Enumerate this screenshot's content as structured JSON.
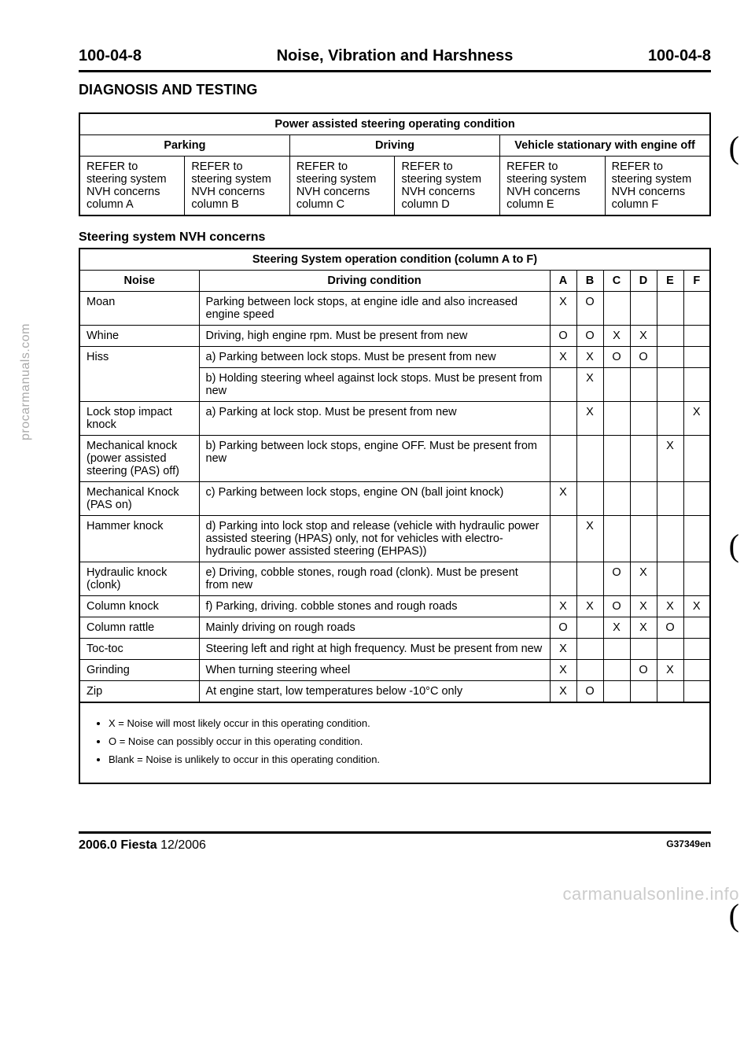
{
  "header": {
    "id_left": "100-04-8",
    "center": "Noise, Vibration and Harshness",
    "id_right": "100-04-8"
  },
  "section_title": "DIAGNOSIS AND TESTING",
  "sidetext": "procarmanuals.com",
  "table1": {
    "caption": "Power assisted steering operating condition",
    "col_headers": [
      "Parking",
      "Driving",
      "Vehicle stationary with engine off"
    ],
    "cells": [
      "REFER to steering system NVH concerns column A",
      "REFER to steering system NVH concerns column B",
      "REFER to steering system NVH concerns column C",
      "REFER to steering system NVH concerns column D",
      "REFER to steering system NVH concerns column E",
      "REFER to steering system NVH concerns column F"
    ]
  },
  "subheading": "Steering system NVH concerns",
  "table2": {
    "caption": "Steering System operation condition (column A to F)",
    "col1": "Noise",
    "col2": "Driving condition",
    "cols": [
      "A",
      "B",
      "C",
      "D",
      "E",
      "F"
    ],
    "rows": [
      {
        "noise": "Moan",
        "cond": "Parking between lock stops, at engine idle and also increased engine speed",
        "m": [
          "X",
          "O",
          "",
          "",
          "",
          ""
        ]
      },
      {
        "noise": "Whine",
        "cond": "Driving, high engine rpm. Must be present from new",
        "m": [
          "O",
          "O",
          "X",
          "X",
          "",
          ""
        ]
      },
      {
        "noise": "Hiss",
        "cond": "a) Parking between lock stops. Must be present from new",
        "m": [
          "X",
          "X",
          "O",
          "O",
          "",
          ""
        ]
      },
      {
        "noise": "",
        "cond": "b) Holding steering wheel against lock stops. Must be present from new",
        "m": [
          "",
          "X",
          "",
          "",
          "",
          ""
        ]
      },
      {
        "noise": "Lock stop impact knock",
        "cond": "a) Parking at lock stop. Must be present from new",
        "m": [
          "",
          "X",
          "",
          "",
          "",
          "X"
        ]
      },
      {
        "noise": "Mechanical knock (power assisted steering (PAS) off)",
        "cond": "b) Parking between lock stops, engine OFF. Must be present from new",
        "m": [
          "",
          "",
          "",
          "",
          "X",
          ""
        ]
      },
      {
        "noise": "Mechanical Knock (PAS on)",
        "cond": "c) Parking between lock stops, engine ON (ball joint knock)",
        "m": [
          "X",
          "",
          "",
          "",
          "",
          ""
        ]
      },
      {
        "noise": "Hammer knock",
        "cond": "d) Parking into lock stop and release (vehicle with hydraulic power assisted steering (HPAS) only, not for vehicles with electro-hydraulic power assisted steering (EHPAS))",
        "m": [
          "",
          "X",
          "",
          "",
          "",
          ""
        ]
      },
      {
        "noise": "Hydraulic knock (clonk)",
        "cond": "e) Driving, cobble stones, rough road (clonk). Must be present from new",
        "m": [
          "",
          "",
          "O",
          "X",
          "",
          ""
        ]
      },
      {
        "noise": "Column knock",
        "cond": "f) Parking, driving. cobble stones and rough roads",
        "m": [
          "X",
          "X",
          "O",
          "X",
          "X",
          "X"
        ]
      },
      {
        "noise": "Column rattle",
        "cond": "Mainly driving on rough roads",
        "m": [
          "O",
          "",
          "X",
          "X",
          "O",
          ""
        ]
      },
      {
        "noise": "Toc-toc",
        "cond": "Steering left and right at high frequency. Must be present from new",
        "m": [
          "X",
          "",
          "",
          "",
          "",
          ""
        ]
      },
      {
        "noise": "Grinding",
        "cond": "When turning steering wheel",
        "m": [
          "X",
          "",
          "",
          "O",
          "X",
          ""
        ]
      },
      {
        "noise": "Zip",
        "cond": "At engine start, low temperatures below -10°C only",
        "m": [
          "X",
          "O",
          "",
          "",
          "",
          ""
        ]
      }
    ]
  },
  "legend": [
    "X = Noise will most likely occur in this operating condition.",
    "O = Noise can possibly occur in this operating condition.",
    "Blank = Noise is unlikely to occur in this operating condition."
  ],
  "footer": {
    "left_bold": "2006.0 Fiesta",
    "left_rest": " 12/2006",
    "right": "G37349en"
  },
  "watermark": "carmanualsonline.info"
}
